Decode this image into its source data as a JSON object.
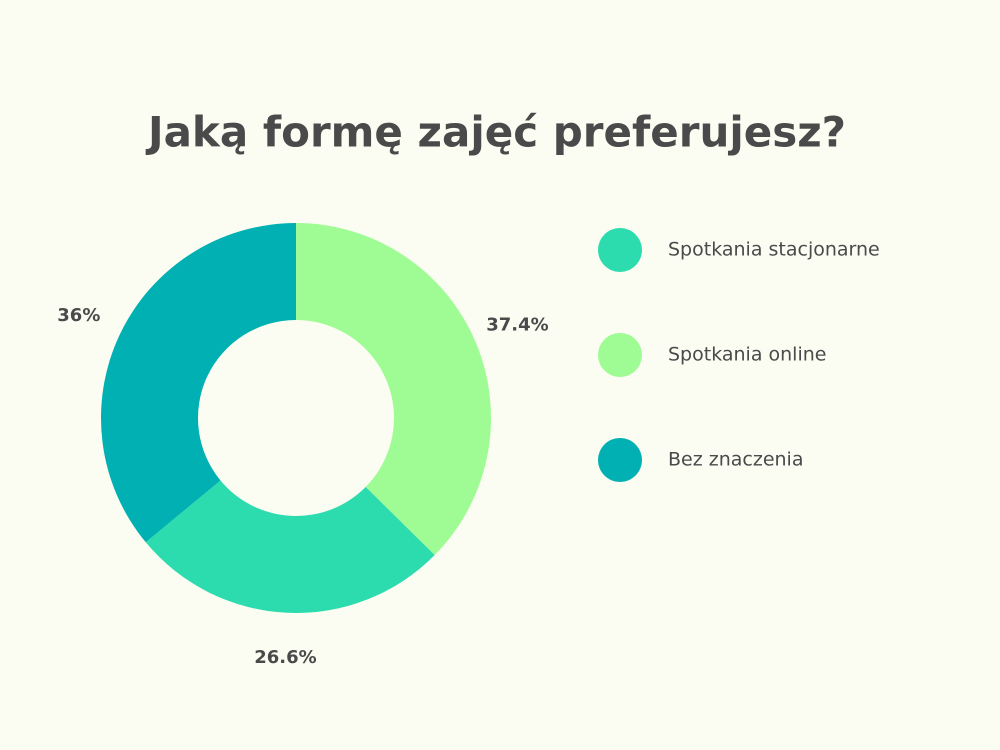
{
  "chart_data": {
    "type": "donut",
    "title": "Jaką formę zajęć preferujesz?",
    "categories": [
      "Spotkania stacjonarne",
      "Spotkania online",
      "Bez znaczenia"
    ],
    "values": [
      26.6,
      37.4,
      36
    ],
    "value_labels": [
      "26.6%",
      "37.4%",
      "36%"
    ],
    "colors": [
      "#2ddcae",
      "#9ffc94",
      "#00b0b3"
    ],
    "legend": "right"
  }
}
